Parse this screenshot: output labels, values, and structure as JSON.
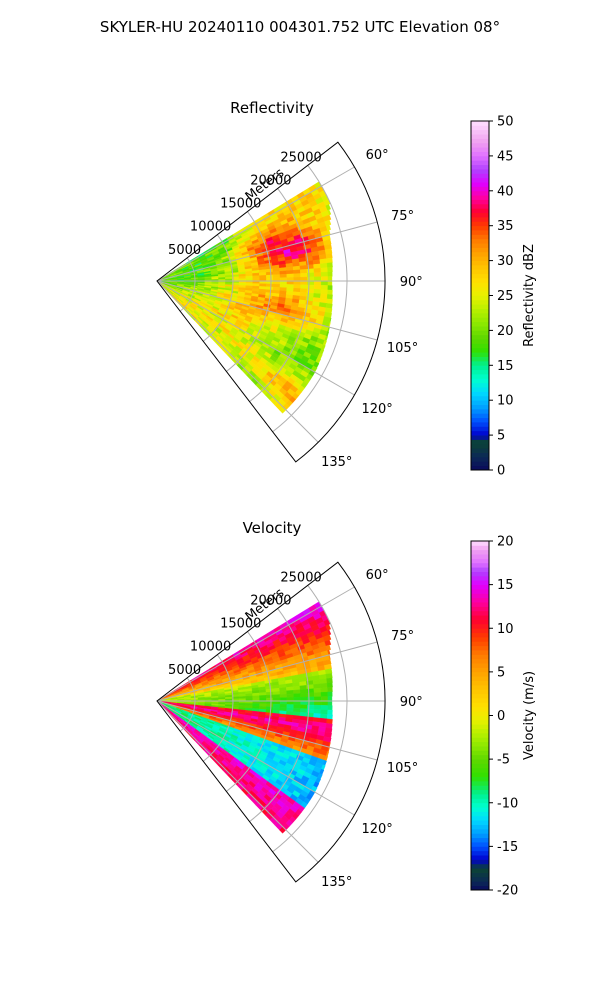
{
  "figure": {
    "suptitle": "SKYLER-HU  20240110  004301.752 UTC Elevation 08°"
  },
  "chart_data": [
    {
      "type": "heatmap",
      "projection": "polar-sector",
      "title": "Reflectivity",
      "range_label": "Meters",
      "range_ticks": [
        "5000",
        "10000",
        "15000",
        "20000",
        "25000"
      ],
      "range_tick_values": [
        5000,
        10000,
        15000,
        20000,
        25000
      ],
      "range_max": 30000,
      "azimuth_range": [
        52.5,
        142.5
      ],
      "azimuth_ticks": [
        "60°",
        "75°",
        "90°",
        "105°",
        "120°",
        "135°"
      ],
      "azimuth_tick_values": [
        60,
        75,
        90,
        105,
        120,
        135
      ],
      "colorbar": {
        "label": "Reflectivity dBZ",
        "ticks": [
          "0",
          "5",
          "10",
          "15",
          "20",
          "25",
          "30",
          "35",
          "40",
          "45",
          "50"
        ],
        "range": [
          0,
          50
        ]
      },
      "field_summary": [
        {
          "azimuth": 65,
          "range_max": 25000,
          "value": 27
        },
        {
          "azimuth": 75,
          "range_max": 23500,
          "value": 33
        },
        {
          "azimuth": 90,
          "range_max": 23000,
          "value": 25
        },
        {
          "azimuth": 105,
          "range_max": 23500,
          "value": 31
        },
        {
          "azimuth": 120,
          "range_max": 24000,
          "value": 30
        },
        {
          "azimuth": 135,
          "range_max": 24000,
          "value": 32
        }
      ]
    },
    {
      "type": "heatmap",
      "projection": "polar-sector",
      "title": "Velocity",
      "range_label": "Meters",
      "range_ticks": [
        "5000",
        "10000",
        "15000",
        "20000",
        "25000"
      ],
      "range_tick_values": [
        5000,
        10000,
        15000,
        20000,
        25000
      ],
      "range_max": 30000,
      "azimuth_range": [
        52.5,
        142.5
      ],
      "azimuth_ticks": [
        "60°",
        "75°",
        "90°",
        "105°",
        "120°",
        "135°"
      ],
      "azimuth_tick_values": [
        60,
        75,
        90,
        105,
        120,
        135
      ],
      "colorbar": {
        "label": "Velocity (m/s)",
        "ticks": [
          "-20",
          "-15",
          "-10",
          "-5",
          "0",
          "5",
          "10",
          "15",
          "20"
        ],
        "range": [
          -20,
          20
        ]
      },
      "field_summary": [
        {
          "azimuth": 65,
          "range_max": 25000,
          "value": 14
        },
        {
          "azimuth": 75,
          "range_max": 23500,
          "value": 8
        },
        {
          "azimuth": 90,
          "range_max": 23000,
          "value": -4
        },
        {
          "azimuth": 105,
          "range_max": 23500,
          "value": 13
        },
        {
          "azimuth": 120,
          "range_max": 24000,
          "value": -9
        },
        {
          "azimuth": 135,
          "range_max": 24000,
          "value": 14
        }
      ]
    }
  ]
}
